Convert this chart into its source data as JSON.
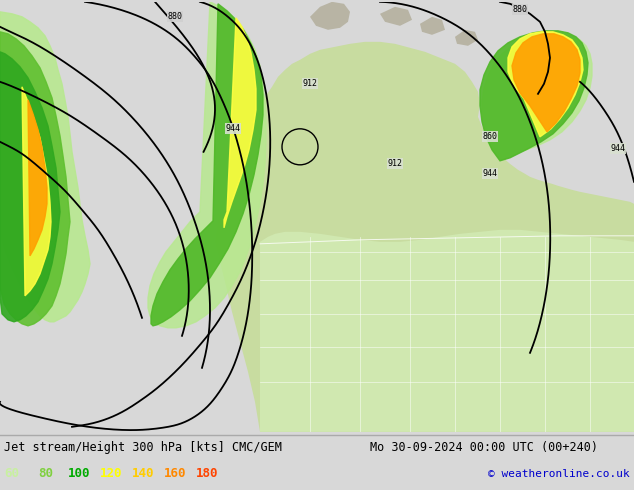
{
  "title_left": "Jet stream/Height 300 hPa [kts] CMC/GEM",
  "title_right": "Mo 30-09-2024 00:00 UTC (00+240)",
  "copyright": "© weatheronline.co.uk",
  "legend_values": [
    "60",
    "80",
    "100",
    "120",
    "140",
    "160",
    "180"
  ],
  "legend_colors": [
    "#c8f0a0",
    "#80d040",
    "#00aa00",
    "#ffff00",
    "#ffcc00",
    "#ff8800",
    "#ff4400"
  ],
  "bg_color": "#d8d8d8",
  "land_light": "#c8e8a0",
  "land_gray": "#b8b8a8",
  "ocean_color": "#d0d0d0",
  "info_bg": "#f0f0f0",
  "figsize": [
    6.34,
    4.9
  ],
  "dpi": 100,
  "title_fontsize": 8.5,
  "legend_fontsize": 9,
  "copyright_color": "#0000cc"
}
